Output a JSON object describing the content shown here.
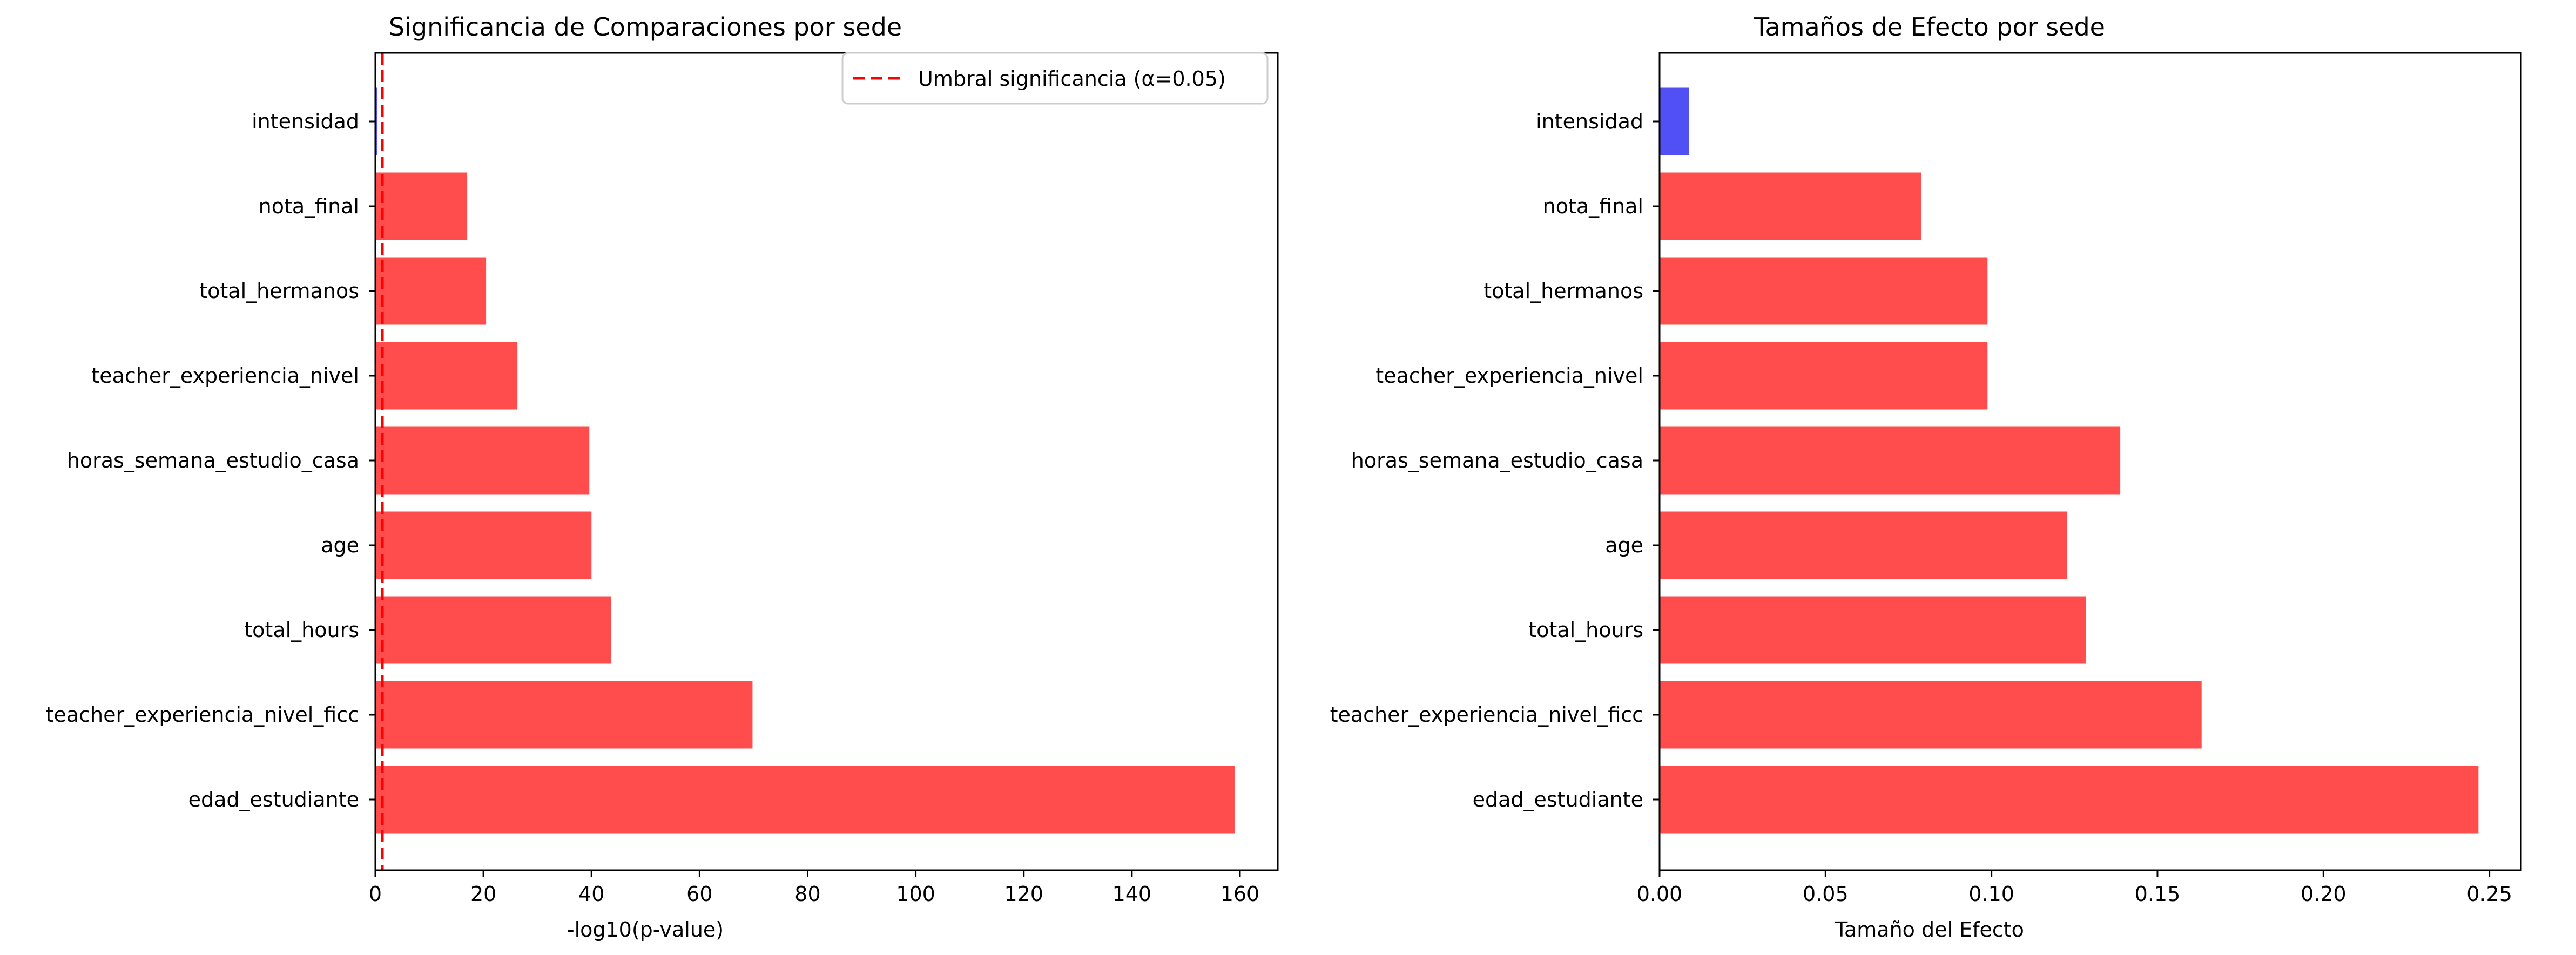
{
  "chart_data": [
    {
      "type": "bar",
      "orientation": "horizontal",
      "title": "Significancia de Comparaciones por sede",
      "xlabel": "-log10(p-value)",
      "ylabel": "",
      "xlim": [
        0,
        167
      ],
      "xticks": [
        0,
        20,
        40,
        60,
        80,
        100,
        120,
        140,
        160
      ],
      "xtick_labels": [
        "0",
        "20",
        "40",
        "60",
        "80",
        "100",
        "120",
        "140",
        "160"
      ],
      "categories": [
        "intensidad",
        "nota_final",
        "total_hermanos",
        "teacher_experiencia_nivel",
        "horas_semana_estudio_casa",
        "age",
        "total_hours",
        "teacher_experiencia_nivel_ficc",
        "edad_estudiante"
      ],
      "values": [
        0.3,
        17,
        20.5,
        26.3,
        39.6,
        40,
        43.6,
        69.8,
        159
      ],
      "bar_colors": [
        "#5050f5",
        "#ff4c4c",
        "#ff4c4c",
        "#ff4c4c",
        "#ff4c4c",
        "#ff4c4c",
        "#ff4c4c",
        "#ff4c4c",
        "#ff4c4c"
      ],
      "threshold": {
        "value": 1.301,
        "color": "#ff0000",
        "style": "dashed"
      },
      "legend": {
        "position": "top-right",
        "label": "Umbral significancia (α=0.05)"
      },
      "grid": false
    },
    {
      "type": "bar",
      "orientation": "horizontal",
      "title": "Tamaños de Efecto por sede",
      "xlabel": "Tamaño del Efecto",
      "ylabel": "",
      "xlim": [
        0,
        0.2595
      ],
      "xticks": [
        0,
        0.05,
        0.1,
        0.15,
        0.2,
        0.25
      ],
      "xtick_labels": [
        "0.00",
        "0.05",
        "0.10",
        "0.15",
        "0.20",
        "0.25"
      ],
      "categories": [
        "intensidad",
        "nota_final",
        "total_hermanos",
        "teacher_experiencia_nivel",
        "horas_semana_estudio_casa",
        "age",
        "total_hours",
        "teacher_experiencia_nivel_ficc",
        "edad_estudiante"
      ],
      "values": [
        0.0089,
        0.0788,
        0.0988,
        0.0988,
        0.1388,
        0.1227,
        0.1284,
        0.1633,
        0.2467
      ],
      "bar_colors": [
        "#5050f5",
        "#ff4c4c",
        "#ff4c4c",
        "#ff4c4c",
        "#ff4c4c",
        "#ff4c4c",
        "#ff4c4c",
        "#ff4c4c",
        "#ff4c4c"
      ],
      "grid": false
    }
  ]
}
